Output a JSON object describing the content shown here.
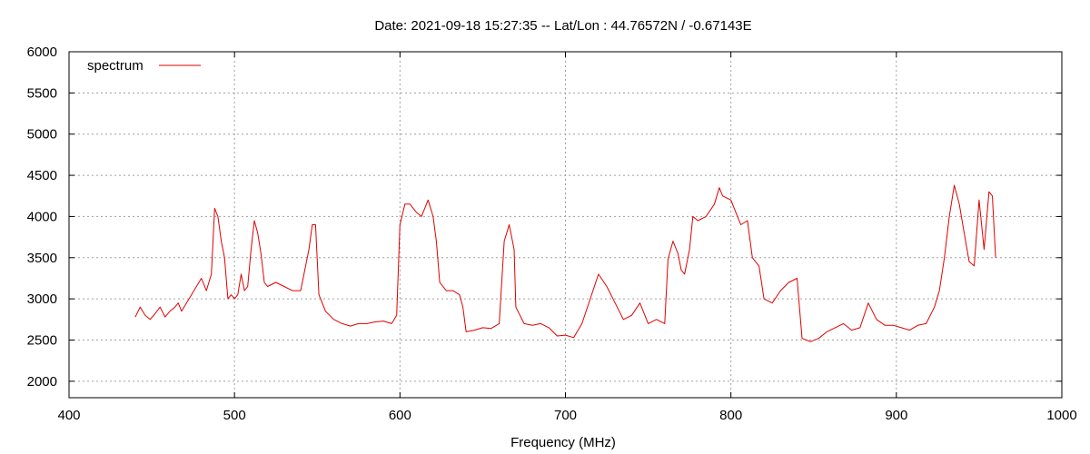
{
  "chart_data": {
    "type": "line",
    "title": "Date: 2021-09-18 15:27:35  --  Lat/Lon : 44.76572N / -0.67143E",
    "xlabel": "Frequency (MHz)",
    "ylabel": "",
    "xlim": [
      400,
      1000
    ],
    "ylim": [
      1800,
      6000
    ],
    "xticks": [
      400,
      500,
      600,
      700,
      800,
      900,
      1000
    ],
    "yticks": [
      2000,
      2500,
      3000,
      3500,
      4000,
      4500,
      5000,
      5500,
      6000
    ],
    "grid": true,
    "legend_position": "top-left",
    "colors": {
      "series": "#e00000",
      "grid": "#a0a0a0",
      "axis": "#000000"
    },
    "series": [
      {
        "name": "spectrum",
        "x": [
          440,
          443,
          446,
          449,
          452,
          455,
          458,
          461,
          464,
          466,
          468,
          471,
          474,
          477,
          480,
          483,
          486,
          488,
          490,
          492,
          494,
          496,
          498,
          500,
          502,
          504,
          506,
          508,
          510,
          512,
          514,
          516,
          518,
          520,
          525,
          530,
          535,
          540,
          545,
          547,
          549,
          551,
          555,
          560,
          565,
          570,
          575,
          580,
          585,
          590,
          595,
          598,
          600,
          603,
          606,
          610,
          613,
          617,
          620,
          622,
          624,
          628,
          632,
          636,
          638,
          640,
          645,
          650,
          655,
          660,
          663,
          666,
          669,
          670,
          675,
          680,
          685,
          690,
          695,
          700,
          705,
          710,
          715,
          720,
          725,
          730,
          735,
          740,
          745,
          750,
          755,
          760,
          762,
          765,
          768,
          770,
          772,
          775,
          777,
          780,
          785,
          790,
          793,
          795,
          800,
          803,
          806,
          810,
          813,
          817,
          820,
          825,
          830,
          835,
          840,
          843,
          848,
          853,
          858,
          863,
          868,
          873,
          878,
          883,
          888,
          893,
          898,
          903,
          908,
          913,
          918,
          923,
          926,
          929,
          932,
          935,
          938,
          941,
          944,
          947,
          950,
          953,
          956,
          958,
          960
        ],
        "values": [
          2780,
          2900,
          2800,
          2750,
          2820,
          2900,
          2780,
          2850,
          2900,
          2950,
          2850,
          2950,
          3050,
          3150,
          3250,
          3100,
          3300,
          4100,
          4000,
          3700,
          3500,
          3000,
          3050,
          3000,
          3050,
          3300,
          3100,
          3150,
          3600,
          3950,
          3800,
          3550,
          3200,
          3150,
          3200,
          3150,
          3100,
          3100,
          3600,
          3900,
          3900,
          3050,
          2850,
          2750,
          2700,
          2670,
          2700,
          2700,
          2720,
          2730,
          2700,
          2800,
          3900,
          4150,
          4150,
          4050,
          4000,
          4200,
          4000,
          3700,
          3200,
          3100,
          3100,
          3050,
          2900,
          2600,
          2620,
          2650,
          2640,
          2700,
          3700,
          3900,
          3600,
          2900,
          2700,
          2680,
          2700,
          2650,
          2550,
          2560,
          2530,
          2700,
          3000,
          3300,
          3150,
          2950,
          2750,
          2800,
          2950,
          2700,
          2750,
          2700,
          3480,
          3700,
          3550,
          3350,
          3300,
          3600,
          4000,
          3950,
          4000,
          4150,
          4350,
          4250,
          4200,
          4050,
          3900,
          3950,
          3500,
          3400,
          3000,
          2950,
          3100,
          3200,
          3250,
          2520,
          2480,
          2520,
          2600,
          2650,
          2700,
          2620,
          2650,
          2950,
          2750,
          2680,
          2680,
          2650,
          2620,
          2680,
          2700,
          2900,
          3100,
          3500,
          4000,
          4380,
          4150,
          3800,
          3450,
          3400,
          4200,
          3600,
          4300,
          4250,
          3500
        ],
        "color": "#e00000"
      }
    ]
  }
}
